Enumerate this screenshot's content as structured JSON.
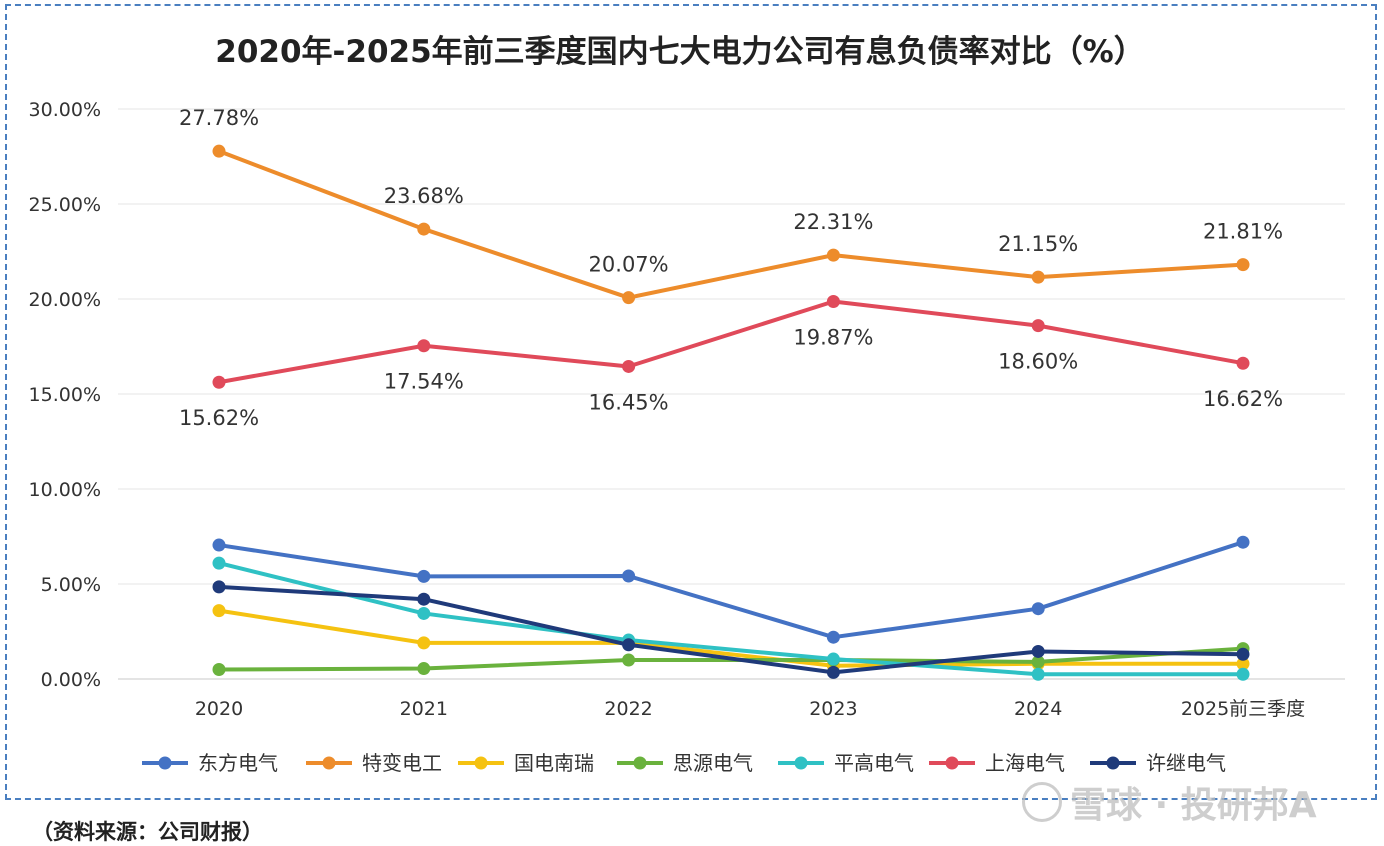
{
  "chart_data": {
    "type": "line",
    "title": "2020年-2025年前三季度国内七大电力公司有息负债率对比（%）",
    "categories": [
      "2020",
      "2021",
      "2022",
      "2023",
      "2024",
      "2025前三季度"
    ],
    "ylim": [
      0,
      30
    ],
    "yticks": [
      "0.00%",
      "5.00%",
      "10.00%",
      "15.00%",
      "20.00%",
      "25.00%",
      "30.00%"
    ],
    "ytick_values": [
      0,
      5,
      10,
      15,
      20,
      25,
      30
    ],
    "grid": true,
    "legend_position": "bottom",
    "series": [
      {
        "name": "东方电气",
        "color": "#4472c4",
        "values": [
          7.05,
          5.4,
          5.42,
          2.2,
          3.7,
          7.2
        ],
        "labels": null
      },
      {
        "name": "特变电工",
        "color": "#ed8c2b",
        "values": [
          27.78,
          23.68,
          20.07,
          22.31,
          21.15,
          21.81
        ],
        "labels": [
          "27.78%",
          "23.68%",
          "20.07%",
          "22.31%",
          "21.15%",
          "21.81%"
        ]
      },
      {
        "name": "国电南瑞",
        "color": "#f5c211",
        "values": [
          3.6,
          1.9,
          1.9,
          0.7,
          0.8,
          0.8
        ],
        "labels": null
      },
      {
        "name": "思源电气",
        "color": "#6ab23d",
        "values": [
          0.5,
          0.55,
          1.0,
          1.0,
          0.9,
          1.6
        ],
        "labels": null
      },
      {
        "name": "平高电气",
        "color": "#2fc1c4",
        "values": [
          6.1,
          3.45,
          2.05,
          1.05,
          0.25,
          0.25
        ],
        "labels": null
      },
      {
        "name": "上海电气",
        "color": "#e04a5a",
        "values": [
          15.62,
          17.54,
          16.45,
          19.87,
          18.6,
          16.62
        ],
        "labels": [
          "15.62%",
          "17.54%",
          "16.45%",
          "19.87%",
          "18.60%",
          "16.62%"
        ]
      },
      {
        "name": "许继电气",
        "color": "#1f3a7a",
        "values": [
          4.85,
          4.2,
          1.8,
          0.35,
          1.45,
          1.3
        ],
        "labels": null
      }
    ]
  },
  "footer": {
    "source": "（资料来源：公司财报）",
    "watermark": "雪球 · 投研邦A"
  }
}
